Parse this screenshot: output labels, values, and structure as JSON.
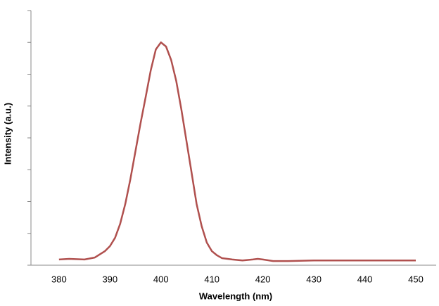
{
  "chart_data": {
    "type": "line",
    "x_label": "Wavelength (nm)",
    "y_label": "Intensity (a.u.)",
    "x": [
      380,
      382,
      385,
      387,
      389,
      390,
      391,
      392,
      393,
      394,
      395,
      396,
      397,
      398,
      399,
      400,
      401,
      402,
      403,
      404,
      405,
      406,
      407,
      408,
      409,
      410,
      411,
      412,
      414,
      416,
      418,
      419,
      420,
      422,
      425,
      430,
      440,
      450
    ],
    "series": [
      {
        "color": "#b0504e",
        "values": [
          0.18,
          0.2,
          0.18,
          0.24,
          0.44,
          0.6,
          0.86,
          1.3,
          1.92,
          2.7,
          3.58,
          4.46,
          5.28,
          6.12,
          6.78,
          7.0,
          6.87,
          6.45,
          5.79,
          4.9,
          3.91,
          2.92,
          1.92,
          1.22,
          0.71,
          0.44,
          0.31,
          0.22,
          0.18,
          0.15,
          0.18,
          0.2,
          0.18,
          0.13,
          0.13,
          0.15,
          0.15,
          0.15
        ]
      }
    ],
    "xlim": [
      374.5,
      454
    ],
    "xticks": [
      380,
      390,
      400,
      410,
      420,
      430,
      440,
      450
    ],
    "ylim": [
      0,
      8
    ],
    "yticks": [
      0,
      1,
      2,
      3,
      4,
      5,
      6,
      7,
      8
    ]
  }
}
